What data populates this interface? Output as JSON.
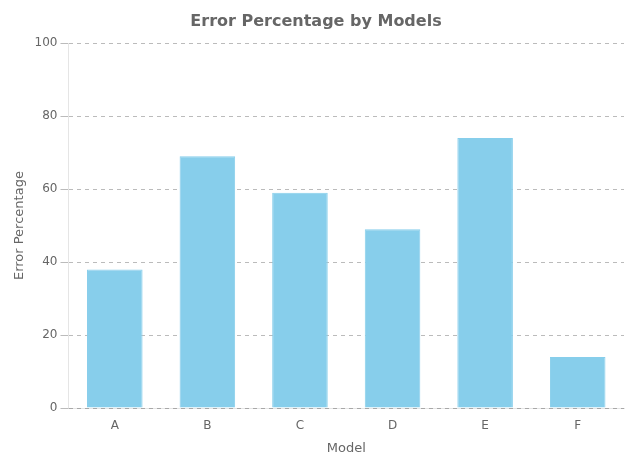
{
  "chart_data": {
    "type": "bar",
    "title": "Error Percentage by Models",
    "xlabel": "Model",
    "ylabel": "Error Percentage",
    "categories": [
      "A",
      "B",
      "C",
      "D",
      "E",
      "F"
    ],
    "values": [
      38,
      69,
      59,
      49,
      74,
      14
    ],
    "color": "#87CEEB",
    "ylim": [
      0,
      100
    ],
    "yticks": [
      0,
      20,
      40,
      60,
      80,
      100
    ],
    "grid": true
  }
}
